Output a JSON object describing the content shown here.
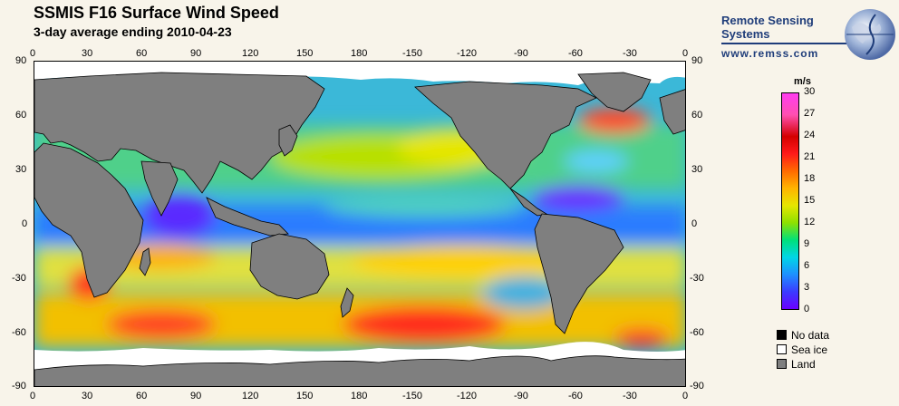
{
  "title": "SSMIS F16 Surface Wind Speed",
  "subtitle": "3-day average ending 2010-04-23",
  "brand": {
    "name": "Remote Sensing Systems",
    "url": "www.remss.com"
  },
  "axes": {
    "longitude_ticks": [
      "0",
      "30",
      "60",
      "90",
      "120",
      "150",
      "180",
      "-150",
      "-120",
      "-90",
      "-60",
      "-30",
      "0"
    ],
    "latitude_ticks": [
      "90",
      "60",
      "30",
      "0",
      "-30",
      "-60",
      "-90"
    ]
  },
  "colorbar": {
    "unit": "m/s",
    "ticks": [
      "30",
      "27",
      "24",
      "21",
      "18",
      "15",
      "12",
      "9",
      "6",
      "3",
      "0"
    ],
    "min": 0,
    "max": 30
  },
  "legend": [
    {
      "label": "No data",
      "color": "#000000"
    },
    {
      "label": "Sea ice",
      "color": "#ffffff"
    },
    {
      "label": "Land",
      "color": "#7f7f7f"
    }
  ],
  "colors": {
    "ocean_base": "#2fb8e0",
    "land": "#7f7f7f",
    "sea_ice": "#ffffff",
    "brand": "#1f3d7a"
  }
}
